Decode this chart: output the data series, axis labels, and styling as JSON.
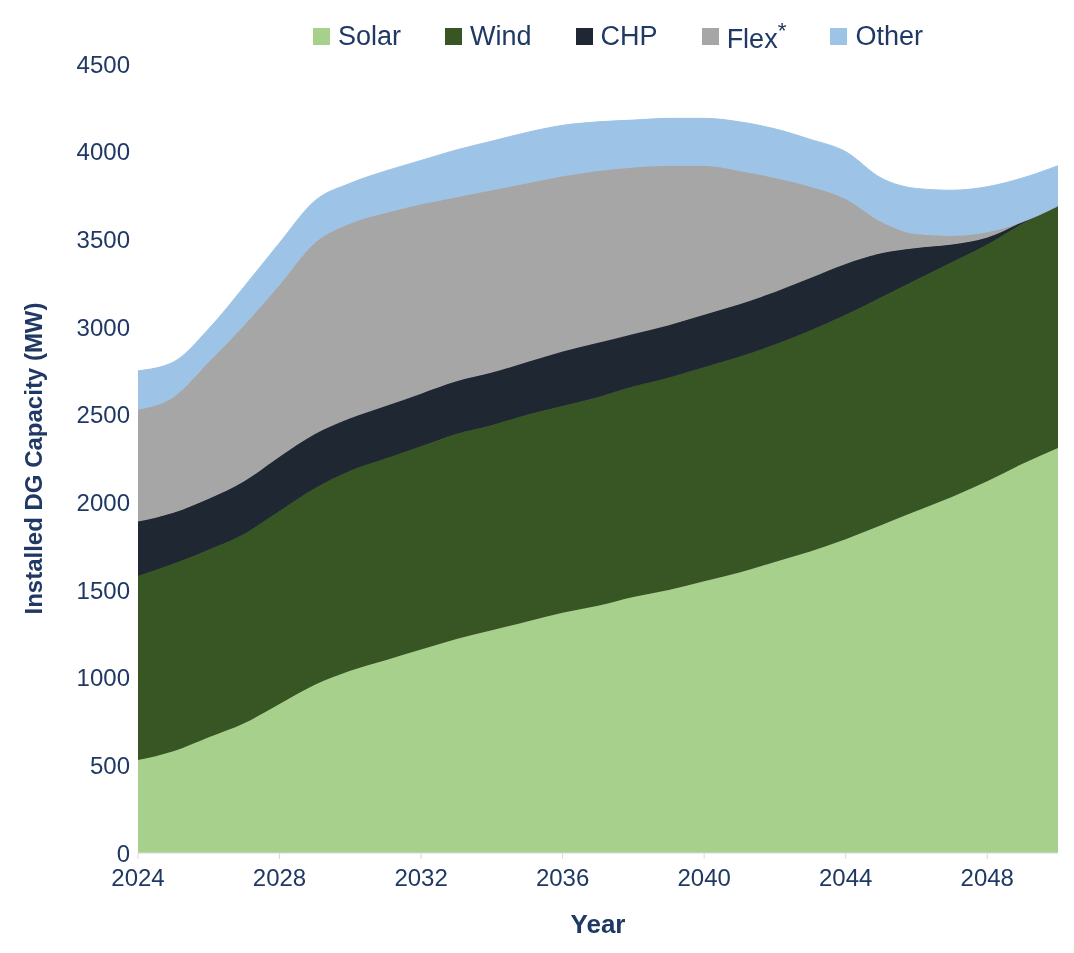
{
  "chart_data": {
    "type": "area",
    "stacked": true,
    "xlabel": "Year",
    "ylabel": "Installed DG Capacity (MW)",
    "x": [
      2024,
      2025,
      2026,
      2027,
      2028,
      2029,
      2030,
      2031,
      2032,
      2033,
      2034,
      2035,
      2036,
      2037,
      2038,
      2039,
      2040,
      2041,
      2042,
      2043,
      2044,
      2045,
      2046,
      2047,
      2048,
      2049,
      2050
    ],
    "series": [
      {
        "name": "Solar",
        "color": "#a6d08c",
        "values": [
          530,
          580,
          660,
          740,
          850,
          960,
          1040,
          1100,
          1160,
          1220,
          1270,
          1320,
          1370,
          1410,
          1460,
          1500,
          1550,
          1600,
          1660,
          1720,
          1790,
          1870,
          1950,
          2030,
          2120,
          2220,
          2310
        ]
      },
      {
        "name": "Wind",
        "color": "#375623",
        "values": [
          1050,
          1070,
          1070,
          1080,
          1100,
          1120,
          1140,
          1150,
          1160,
          1170,
          1170,
          1180,
          1180,
          1190,
          1200,
          1210,
          1220,
          1230,
          1240,
          1260,
          1280,
          1300,
          1320,
          1340,
          1350,
          1370,
          1380
        ]
      },
      {
        "name": "CHP",
        "color": "#1f2733",
        "values": [
          310,
          290,
          290,
          300,
          310,
          310,
          300,
          300,
          300,
          300,
          300,
          300,
          310,
          310,
          300,
          300,
          300,
          300,
          300,
          300,
          290,
          250,
          180,
          100,
          40,
          10,
          0
        ]
      },
      {
        "name": "Flex$^{*}$",
        "color": "#a6a6a6",
        "values": [
          640,
          660,
          780,
          890,
          980,
          1090,
          1110,
          1100,
          1080,
          1050,
          1040,
          1020,
          1000,
          980,
          950,
          910,
          850,
          760,
          650,
          520,
          370,
          180,
          80,
          50,
          30,
          0,
          0
        ]
      },
      {
        "name": "Other",
        "color": "#9dc3e6",
        "values": [
          220,
          200,
          190,
          220,
          240,
          240,
          230,
          240,
          250,
          270,
          280,
          290,
          290,
          280,
          270,
          270,
          270,
          280,
          280,
          270,
          270,
          250,
          260,
          260,
          260,
          250,
          230
        ]
      }
    ],
    "xlim": [
      2024,
      2050
    ],
    "xticks": [
      2024,
      2028,
      2032,
      2036,
      2040,
      2044,
      2048
    ],
    "ylim": [
      0,
      4500
    ],
    "yticks": [
      0,
      500,
      1000,
      1500,
      2000,
      2500,
      3000,
      3500,
      4000,
      4500
    ],
    "legend": "top",
    "grid": false
  }
}
